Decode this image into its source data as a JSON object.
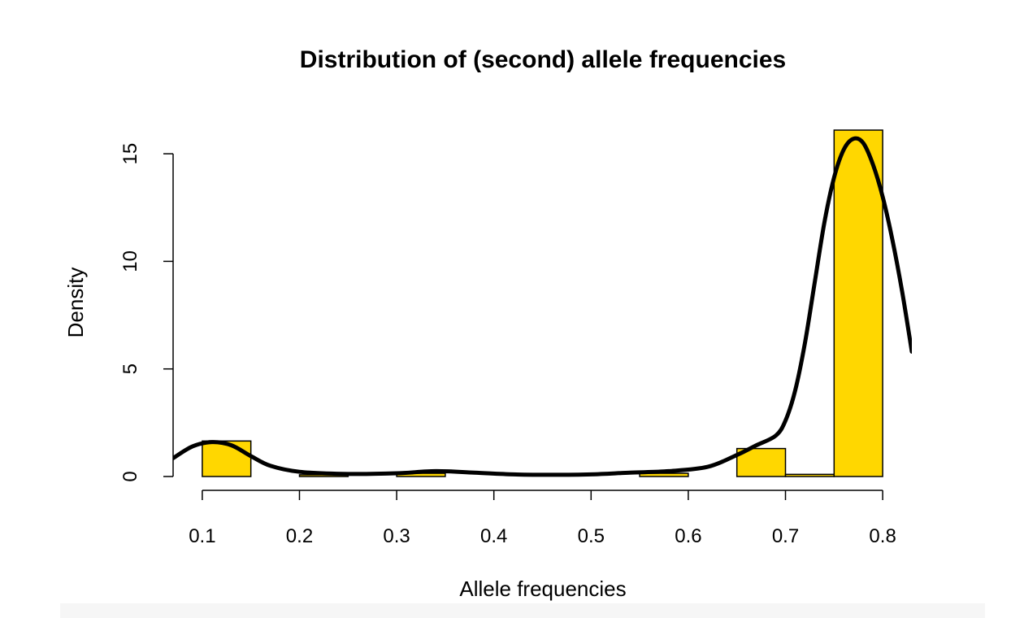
{
  "chart_data": {
    "type": "bar",
    "title": "Distribution of (second) allele frequencies",
    "xlabel": "Allele frequencies",
    "ylabel": "Density",
    "xlim": [
      0.07,
      0.83
    ],
    "ylim": [
      0,
      16.1
    ],
    "grid": false,
    "legend": "none",
    "x_ticks": [
      0.1,
      0.2,
      0.3,
      0.4,
      0.5,
      0.6,
      0.7,
      0.8
    ],
    "x_tick_labels": [
      "0.1",
      "0.2",
      "0.3",
      "0.4",
      "0.5",
      "0.6",
      "0.7",
      "0.8"
    ],
    "y_ticks": [
      0,
      5,
      10,
      15
    ],
    "y_tick_labels": [
      "0",
      "5",
      "10",
      "15"
    ],
    "bins": [
      {
        "x0": 0.1,
        "x1": 0.15,
        "density": 1.65
      },
      {
        "x0": 0.15,
        "x1": 0.2,
        "density": 0.0
      },
      {
        "x0": 0.2,
        "x1": 0.25,
        "density": 0.08
      },
      {
        "x0": 0.25,
        "x1": 0.3,
        "density": 0.0
      },
      {
        "x0": 0.3,
        "x1": 0.35,
        "density": 0.15
      },
      {
        "x0": 0.35,
        "x1": 0.4,
        "density": 0.0
      },
      {
        "x0": 0.4,
        "x1": 0.45,
        "density": 0.0
      },
      {
        "x0": 0.45,
        "x1": 0.5,
        "density": 0.0
      },
      {
        "x0": 0.5,
        "x1": 0.55,
        "density": 0.0
      },
      {
        "x0": 0.55,
        "x1": 0.6,
        "density": 0.15
      },
      {
        "x0": 0.6,
        "x1": 0.65,
        "density": 0.0
      },
      {
        "x0": 0.65,
        "x1": 0.7,
        "density": 1.3
      },
      {
        "x0": 0.7,
        "x1": 0.75,
        "density": 0.1
      },
      {
        "x0": 0.75,
        "x1": 0.8,
        "density": 16.1
      }
    ],
    "density_curve": {
      "x": [
        0.07,
        0.09,
        0.11,
        0.13,
        0.15,
        0.17,
        0.2,
        0.25,
        0.3,
        0.34,
        0.38,
        0.42,
        0.46,
        0.5,
        0.54,
        0.58,
        0.62,
        0.65,
        0.67,
        0.69,
        0.7,
        0.71,
        0.72,
        0.73,
        0.74,
        0.75,
        0.76,
        0.77,
        0.78,
        0.79,
        0.8,
        0.81,
        0.82,
        0.83
      ],
      "y": [
        0.85,
        1.4,
        1.6,
        1.45,
        0.95,
        0.5,
        0.22,
        0.12,
        0.15,
        0.25,
        0.18,
        0.1,
        0.08,
        0.1,
        0.18,
        0.25,
        0.45,
        1.0,
        1.45,
        1.9,
        2.6,
        4.0,
        6.2,
        9.0,
        11.8,
        13.9,
        15.2,
        15.7,
        15.5,
        14.5,
        13.0,
        11.0,
        8.6,
        5.8
      ]
    },
    "colors": {
      "bar_fill": "#FFD700",
      "bar_stroke": "#000000",
      "curve": "#000000"
    }
  }
}
